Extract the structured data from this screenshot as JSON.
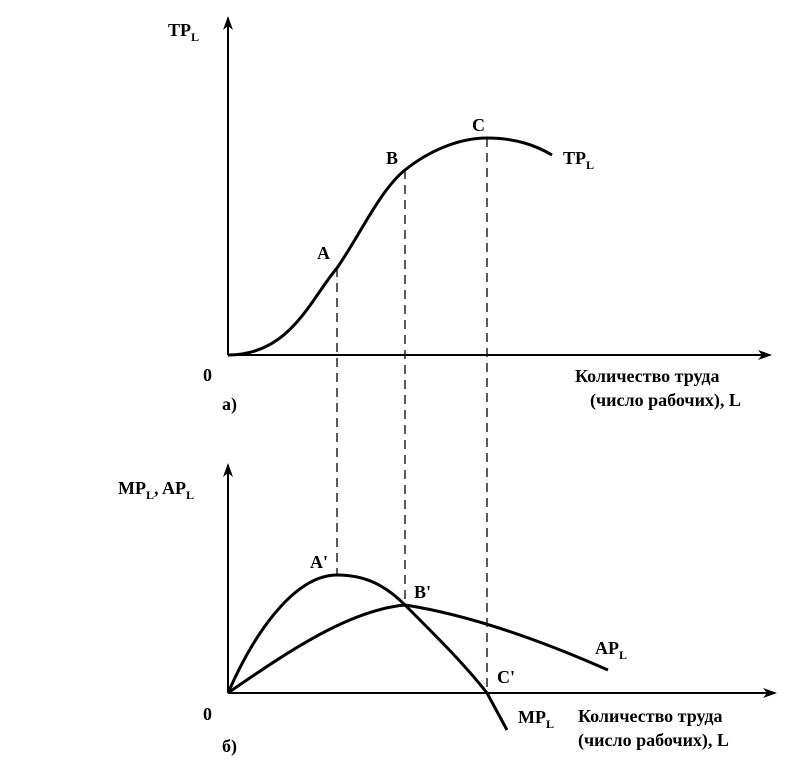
{
  "panel_a": {
    "label": "а)",
    "y_axis": {
      "main": "TP",
      "sub": "L"
    },
    "origin": "0",
    "x_axis": [
      "Количество труда",
      "(число рабочих), L"
    ],
    "points": [
      "A",
      "B",
      "C"
    ],
    "curve": {
      "main": "TP",
      "sub": "L"
    }
  },
  "panel_b": {
    "label": "б)",
    "y_axis": {
      "mp": "MP",
      "mp_sub": "L",
      "sep": ", AP",
      "ap_sub": "L"
    },
    "origin": "0",
    "x_axis": [
      "Количество труда",
      "(число рабочих), L"
    ],
    "points": [
      "A'",
      "B'",
      "C'"
    ],
    "curves": [
      {
        "main": "AP",
        "sub": "L"
      },
      {
        "main": "MP",
        "sub": "L"
      }
    ]
  }
}
